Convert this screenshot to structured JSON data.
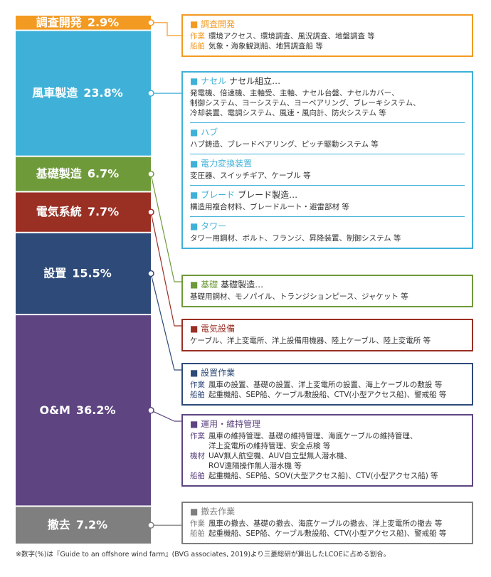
{
  "chart_data": {
    "type": "stacked-bar",
    "categories": [
      "調査開発",
      "風車製造",
      "基礎製造",
      "電気系統",
      "設置",
      "O&M",
      "撤去"
    ],
    "values": [
      2.9,
      23.8,
      6.7,
      7.7,
      15.5,
      36.2,
      7.2
    ],
    "value_labels": [
      "2.9%",
      "23.8%",
      "6.7%",
      "7.7%",
      "15.5%",
      "36.2%",
      "7.2%"
    ],
    "colors": [
      "#f39a22",
      "#3fb1d8",
      "#6f9a3a",
      "#9a2f24",
      "#2e4a78",
      "#5e4581",
      "#7f7f7f"
    ]
  },
  "details": [
    {
      "sections": [
        {
          "title": "調査開発",
          "rows": [
            {
              "label": "作業",
              "lines": [
                "環境アクセス、環境調査、風況調査、地盤調査 等"
              ]
            },
            {
              "label": "船舶",
              "lines": [
                "気象・海象観測船、地質調査船 等"
              ]
            }
          ]
        }
      ]
    },
    {
      "sections": [
        {
          "title": "ナセル",
          "subtitle": "ナセル組立…",
          "rows": [
            {
              "lines": [
                "発電機、倍速機、主軸受、主軸、ナセル台盤、ナセルカバー、",
                "制御システム、ヨーシステム、ヨーベアリング、ブレーキシステム、",
                "冷却装置、電調システム、風速・風向計、防火システム 等"
              ]
            }
          ]
        },
        {
          "title": "ハブ",
          "rows": [
            {
              "lines": [
                "ハブ鋳造、ブレードベアリング、ピッチ駆動システム 等"
              ]
            }
          ]
        },
        {
          "title": "電力変換装置",
          "rows": [
            {
              "lines": [
                "変圧器、スイッチギア、ケーブル 等"
              ]
            }
          ]
        },
        {
          "title": "ブレード",
          "subtitle": "ブレード製造…",
          "rows": [
            {
              "lines": [
                "構造用複合材料、ブレードルート・避雷部材 等"
              ]
            }
          ]
        },
        {
          "title": "タワー",
          "rows": [
            {
              "lines": [
                "タワー用鋼材、ボルト、フランジ、昇降装置、制御システム 等"
              ]
            }
          ]
        }
      ]
    },
    {
      "sections": [
        {
          "title": "基礎",
          "subtitle": "基礎製造…",
          "rows": [
            {
              "lines": [
                "基礎用鋼材、モノパイル、トランジションピース、ジャケット 等"
              ]
            }
          ]
        }
      ]
    },
    {
      "sections": [
        {
          "title": "電気設備",
          "rows": [
            {
              "lines": [
                "ケーブル、洋上変電所、洋上設備用機器、陸上ケーブル、陸上変電所 等"
              ]
            }
          ]
        }
      ]
    },
    {
      "sections": [
        {
          "title": "設置作業",
          "rows": [
            {
              "label": "作業",
              "lines": [
                "風車の設置、基礎の設置、洋上変電所の設置、海上ケーブルの敷設 等"
              ]
            },
            {
              "label": "船舶",
              "lines": [
                "起重機船、SEP船、ケーブル敷設船、CTV(小型アクセス船)、警戒船 等"
              ]
            }
          ]
        }
      ]
    },
    {
      "sections": [
        {
          "title": "運用・維持管理",
          "rows": [
            {
              "label": "作業",
              "lines": [
                "風車の維持管理、基礎の維持管理、海底ケーブルの維持管理、",
                "洋上変電所の維持管理、安全点検 等"
              ]
            },
            {
              "label": "機材",
              "lines": [
                "UAV無人航空機、AUV自立型無人潜水機、",
                "ROV遠隔操作無人潜水機 等"
              ]
            },
            {
              "label": "船舶",
              "lines": [
                "起重機船、SEP船、SOV(大型アクセス船)、CTV(小型アクセス船) 等"
              ]
            }
          ]
        }
      ]
    },
    {
      "sections": [
        {
          "title": "撤去作業",
          "rows": [
            {
              "label": "作業",
              "lines": [
                "風車の撤去、基礎の撤去、海底ケーブルの撤去、洋上変電所の撤去 等"
              ]
            },
            {
              "label": "船舶",
              "lines": [
                "起重機船、SEP船、ケーブル敷設船、CTV(小型アクセス船)、警戒船 等"
              ]
            }
          ]
        }
      ]
    }
  ],
  "footnote": "※数字(%)は『Guide to an offshore wind farm』(BVG associates, 2019)より三菱総研が算出したLCOEに占める割合。"
}
